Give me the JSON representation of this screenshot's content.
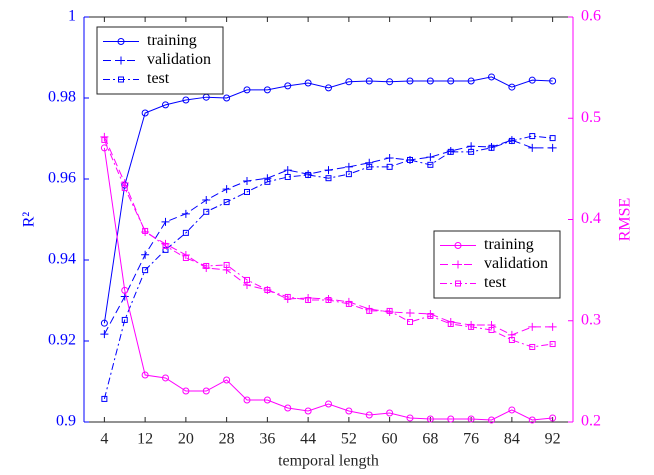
{
  "chart_data": {
    "type": "line",
    "xlabel": "temporal length",
    "ylabel": "R²",
    "y2label": "RMSE",
    "x": [
      4,
      8,
      12,
      16,
      20,
      24,
      28,
      32,
      36,
      40,
      44,
      48,
      52,
      56,
      60,
      64,
      68,
      72,
      76,
      80,
      84,
      88,
      92
    ],
    "xlim": [
      0,
      96
    ],
    "xticks": [
      4,
      12,
      20,
      28,
      36,
      44,
      52,
      60,
      68,
      76,
      84,
      92
    ],
    "ylim": [
      0.9,
      1
    ],
    "yticks": [
      0.9,
      0.92,
      0.94,
      0.96,
      0.98,
      1
    ],
    "y2lim": [
      0.2,
      0.6
    ],
    "y2ticks": [
      0.2,
      0.3,
      0.4,
      0.5,
      0.6
    ],
    "y_color": "#0000ff",
    "y2_color": "#ff00ff",
    "legend": "upper left",
    "legend2": "center right",
    "series": [
      {
        "name": "training",
        "color": "#0000ff",
        "linestyle": "solid",
        "marker": "circle",
        "values": [
          0.9244,
          0.9585,
          0.9763,
          0.9783,
          0.9795,
          0.9802,
          0.98,
          0.982,
          0.982,
          0.983,
          0.9837,
          0.9825,
          0.984,
          0.9842,
          0.984,
          0.9842,
          0.9842,
          0.9842,
          0.9842,
          0.9852,
          0.9827,
          0.9844,
          0.9842
        ]
      },
      {
        "name": "validation",
        "color": "#0000ff",
        "linestyle": "dashed",
        "marker": "plus",
        "values": [
          0.9217,
          0.931,
          0.9413,
          0.9494,
          0.9514,
          0.9548,
          0.9575,
          0.9595,
          0.9602,
          0.9622,
          0.9612,
          0.9622,
          0.963,
          0.964,
          0.9652,
          0.9647,
          0.9654,
          0.9669,
          0.9681,
          0.9679,
          0.9696,
          0.9677,
          0.9677
        ]
      },
      {
        "name": "test",
        "color": "#0000ff",
        "linestyle": "dashdot",
        "marker": "square",
        "values": [
          0.9057,
          0.9252,
          0.9375,
          0.9425,
          0.9467,
          0.9519,
          0.9543,
          0.9568,
          0.9593,
          0.9605,
          0.961,
          0.9602,
          0.9612,
          0.963,
          0.963,
          0.9647,
          0.9635,
          0.9667,
          0.9667,
          0.9677,
          0.9694,
          0.9706,
          0.9701
        ]
      },
      {
        "name": "training",
        "color": "#ff00ff",
        "linestyle": "solid",
        "marker": "circle",
        "axis": "y2",
        "values": [
          0.4707,
          0.33,
          0.2464,
          0.2435,
          0.2306,
          0.2306,
          0.2415,
          0.2217,
          0.2217,
          0.2138,
          0.2109,
          0.2178,
          0.2109,
          0.2069,
          0.2089,
          0.204,
          0.203,
          0.203,
          0.203,
          0.202,
          0.2119,
          0.202,
          0.204
        ]
      },
      {
        "name": "validation",
        "color": "#ff00ff",
        "linestyle": "dashed",
        "marker": "plus",
        "axis": "y2",
        "values": [
          0.4816,
          0.4361,
          0.3877,
          0.3759,
          0.365,
          0.3521,
          0.3502,
          0.3353,
          0.3304,
          0.3215,
          0.3225,
          0.3215,
          0.3186,
          0.3116,
          0.3087,
          0.3077,
          0.3067,
          0.2988,
          0.2958,
          0.2958,
          0.286,
          0.2939,
          0.2939
        ]
      },
      {
        "name": "test",
        "color": "#ff00ff",
        "linestyle": "dashdot",
        "marker": "square",
        "axis": "y2",
        "values": [
          0.4786,
          0.4312,
          0.3887,
          0.3739,
          0.362,
          0.3541,
          0.3551,
          0.3403,
          0.3304,
          0.3235,
          0.3205,
          0.3205,
          0.3166,
          0.3097,
          0.3097,
          0.2988,
          0.3047,
          0.2968,
          0.2939,
          0.2909,
          0.281,
          0.2741,
          0.277
        ]
      }
    ]
  }
}
